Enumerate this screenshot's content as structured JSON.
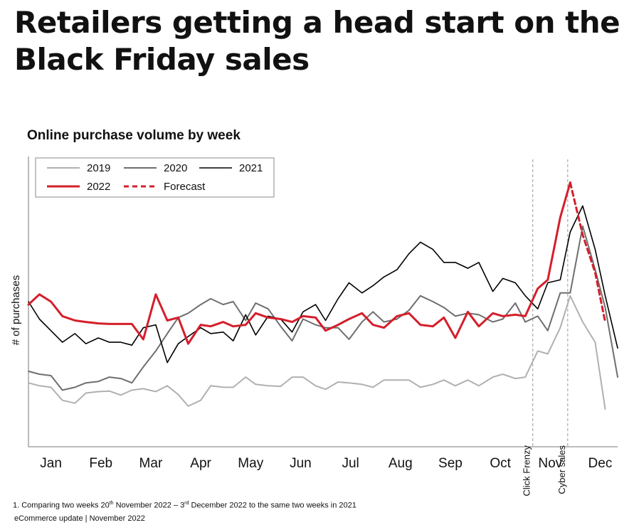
{
  "title_line1": "Retailers getting a head start on the",
  "title_line2": "Black Friday sales",
  "footnote": {
    "prefix": "1. Comparing two weeks 20",
    "sup1": "th",
    "mid": " November 2022 – 3",
    "sup2": "rd",
    "suffix": " December 2022 to the same two weeks in 2021"
  },
  "source": "eCommerce update | November 2022",
  "colors": {
    "2019": "#b0b0b0",
    "2020": "#6e6e6e",
    "2021": "#000000",
    "2022": "#d41f2b",
    "Forecast": "#d41f2b"
  },
  "chart_data": {
    "type": "line",
    "title": "Online purchase volume by week",
    "ylabel": "# of purchases",
    "xlabel": "",
    "y_units": "relative index (no printed y-axis values)",
    "ylim": [
      0,
      100
    ],
    "xlim": [
      0,
      11.8
    ],
    "x_ticks": [
      {
        "label": "Jan",
        "x": 0.45
      },
      {
        "label": "Feb",
        "x": 1.45
      },
      {
        "label": "Mar",
        "x": 2.45
      },
      {
        "label": "Apr",
        "x": 3.45
      },
      {
        "label": "May",
        "x": 4.45
      },
      {
        "label": "Jun",
        "x": 5.45
      },
      {
        "label": "Jul",
        "x": 6.45
      },
      {
        "label": "Aug",
        "x": 7.45
      },
      {
        "label": "Sep",
        "x": 8.45
      },
      {
        "label": "Oct",
        "x": 9.45
      },
      {
        "label": "Nov",
        "x": 10.45
      },
      {
        "label": "Dec",
        "x": 11.45
      }
    ],
    "annotations": [
      {
        "label": "Click Frenzy",
        "x": 10.1,
        "style": "dashed-vertical"
      },
      {
        "label": "Cyber sales",
        "x": 10.8,
        "style": "dashed-vertical"
      }
    ],
    "legend": {
      "placement": "top-left",
      "entries": [
        "2019",
        "2020",
        "2021",
        "2022",
        "Forecast"
      ]
    },
    "grid": false,
    "series": [
      {
        "name": "2019",
        "style": "solid",
        "points": [
          [
            0,
            22
          ],
          [
            0.22,
            21
          ],
          [
            0.45,
            20.5
          ],
          [
            0.68,
            16
          ],
          [
            0.93,
            15
          ],
          [
            1.15,
            18.5
          ],
          [
            1.4,
            19
          ],
          [
            1.62,
            19.2
          ],
          [
            1.85,
            17.8
          ],
          [
            2.07,
            19.5
          ],
          [
            2.3,
            20
          ],
          [
            2.55,
            19
          ],
          [
            2.78,
            21
          ],
          [
            3.0,
            18
          ],
          [
            3.2,
            14
          ],
          [
            3.45,
            16
          ],
          [
            3.65,
            21
          ],
          [
            3.9,
            20.5
          ],
          [
            4.1,
            20.5
          ],
          [
            4.35,
            24
          ],
          [
            4.55,
            21.5
          ],
          [
            4.8,
            21
          ],
          [
            5.05,
            20.8
          ],
          [
            5.28,
            24
          ],
          [
            5.5,
            24
          ],
          [
            5.75,
            21
          ],
          [
            5.95,
            19.8
          ],
          [
            6.2,
            22.3
          ],
          [
            6.42,
            22
          ],
          [
            6.68,
            21.5
          ],
          [
            6.9,
            20.5
          ],
          [
            7.12,
            23
          ],
          [
            7.38,
            23
          ],
          [
            7.62,
            23
          ],
          [
            7.85,
            20.5
          ],
          [
            8.1,
            21.5
          ],
          [
            8.32,
            23
          ],
          [
            8.55,
            21
          ],
          [
            8.8,
            23
          ],
          [
            9.02,
            21
          ],
          [
            9.3,
            24
          ],
          [
            9.5,
            25
          ],
          [
            9.75,
            23.5
          ],
          [
            9.95,
            24
          ],
          [
            10.2,
            33
          ],
          [
            10.4,
            32
          ],
          [
            10.65,
            41
          ],
          [
            10.85,
            52
          ],
          [
            11.1,
            43
          ],
          [
            11.35,
            36
          ],
          [
            11.55,
            13
          ]
        ]
      },
      {
        "name": "2020",
        "style": "solid",
        "points": [
          [
            0,
            26
          ],
          [
            0.22,
            25
          ],
          [
            0.45,
            24.5
          ],
          [
            0.68,
            19.5
          ],
          [
            0.93,
            20.5
          ],
          [
            1.15,
            22
          ],
          [
            1.4,
            22.5
          ],
          [
            1.62,
            24
          ],
          [
            1.85,
            23.5
          ],
          [
            2.07,
            22
          ],
          [
            2.3,
            27.5
          ],
          [
            2.55,
            33
          ],
          [
            2.78,
            39
          ],
          [
            3.0,
            44.5
          ],
          [
            3.2,
            46
          ],
          [
            3.45,
            49
          ],
          [
            3.65,
            51
          ],
          [
            3.9,
            49
          ],
          [
            4.1,
            50
          ],
          [
            4.35,
            43.5
          ],
          [
            4.55,
            49.5
          ],
          [
            4.8,
            47.5
          ],
          [
            5.05,
            41.5
          ],
          [
            5.28,
            36.5
          ],
          [
            5.5,
            44
          ],
          [
            5.75,
            42
          ],
          [
            5.95,
            41
          ],
          [
            6.2,
            41
          ],
          [
            6.42,
            37
          ],
          [
            6.68,
            43
          ],
          [
            6.9,
            46.5
          ],
          [
            7.12,
            43
          ],
          [
            7.38,
            44
          ],
          [
            7.62,
            47
          ],
          [
            7.85,
            52
          ],
          [
            8.1,
            50
          ],
          [
            8.32,
            48
          ],
          [
            8.55,
            45
          ],
          [
            8.8,
            46
          ],
          [
            9.02,
            45.5
          ],
          [
            9.3,
            43
          ],
          [
            9.5,
            44
          ],
          [
            9.75,
            49.5
          ],
          [
            9.95,
            43
          ],
          [
            10.2,
            45
          ],
          [
            10.4,
            40
          ],
          [
            10.65,
            53
          ],
          [
            10.85,
            53
          ],
          [
            11.1,
            76
          ],
          [
            11.35,
            61
          ],
          [
            11.55,
            48
          ],
          [
            11.8,
            24
          ]
        ]
      },
      {
        "name": "2021",
        "style": "solid",
        "points": [
          [
            0,
            50
          ],
          [
            0.22,
            44
          ],
          [
            0.45,
            40
          ],
          [
            0.68,
            36
          ],
          [
            0.93,
            39
          ],
          [
            1.15,
            35.5
          ],
          [
            1.4,
            37.5
          ],
          [
            1.62,
            36
          ],
          [
            1.85,
            36
          ],
          [
            2.07,
            35
          ],
          [
            2.3,
            41
          ],
          [
            2.55,
            42
          ],
          [
            2.78,
            29
          ],
          [
            3.0,
            35.5
          ],
          [
            3.2,
            38
          ],
          [
            3.45,
            41
          ],
          [
            3.65,
            39
          ],
          [
            3.9,
            39.5
          ],
          [
            4.1,
            36.5
          ],
          [
            4.35,
            45.5
          ],
          [
            4.55,
            38.5
          ],
          [
            4.8,
            45
          ],
          [
            5.05,
            44
          ],
          [
            5.28,
            39.5
          ],
          [
            5.5,
            46.5
          ],
          [
            5.75,
            49
          ],
          [
            5.95,
            43.5
          ],
          [
            6.2,
            51
          ],
          [
            6.42,
            56.5
          ],
          [
            6.68,
            53
          ],
          [
            6.9,
            55.5
          ],
          [
            7.12,
            58.5
          ],
          [
            7.38,
            61
          ],
          [
            7.62,
            66.5
          ],
          [
            7.85,
            70.5
          ],
          [
            8.1,
            68
          ],
          [
            8.32,
            63.5
          ],
          [
            8.55,
            63.5
          ],
          [
            8.8,
            61.5
          ],
          [
            9.02,
            63.5
          ],
          [
            9.3,
            53.5
          ],
          [
            9.5,
            58
          ],
          [
            9.75,
            56.5
          ],
          [
            9.95,
            52
          ],
          [
            10.2,
            47.5
          ],
          [
            10.4,
            56.5
          ],
          [
            10.65,
            57.5
          ],
          [
            10.85,
            74
          ],
          [
            11.1,
            83
          ],
          [
            11.35,
            68
          ],
          [
            11.55,
            52
          ],
          [
            11.8,
            34
          ]
        ]
      },
      {
        "name": "2022",
        "style": "solid",
        "points": [
          [
            0,
            49
          ],
          [
            0.22,
            52.5
          ],
          [
            0.45,
            50
          ],
          [
            0.68,
            45
          ],
          [
            0.93,
            43.5
          ],
          [
            1.15,
            43
          ],
          [
            1.4,
            42.5
          ],
          [
            1.62,
            42.3
          ],
          [
            1.85,
            42.3
          ],
          [
            2.07,
            42.3
          ],
          [
            2.3,
            37
          ],
          [
            2.55,
            52.5
          ],
          [
            2.78,
            43.5
          ],
          [
            3.0,
            44.5
          ],
          [
            3.2,
            35.5
          ],
          [
            3.45,
            42
          ],
          [
            3.65,
            41.5
          ],
          [
            3.9,
            43
          ],
          [
            4.1,
            41.5
          ],
          [
            4.35,
            42
          ],
          [
            4.55,
            46
          ],
          [
            4.8,
            44.5
          ],
          [
            5.05,
            44
          ],
          [
            5.28,
            43
          ],
          [
            5.5,
            45
          ],
          [
            5.75,
            44.5
          ],
          [
            5.95,
            40
          ],
          [
            6.2,
            42
          ],
          [
            6.42,
            44
          ],
          [
            6.68,
            46
          ],
          [
            6.9,
            42
          ],
          [
            7.12,
            41
          ],
          [
            7.38,
            45
          ],
          [
            7.62,
            46
          ],
          [
            7.85,
            42
          ],
          [
            8.1,
            41.5
          ],
          [
            8.32,
            44.5
          ],
          [
            8.55,
            37.5
          ],
          [
            8.8,
            46.5
          ],
          [
            9.02,
            41.5
          ],
          [
            9.3,
            46
          ],
          [
            9.5,
            45
          ],
          [
            9.75,
            45.5
          ],
          [
            9.95,
            45
          ],
          [
            10.2,
            54.5
          ],
          [
            10.4,
            57.5
          ],
          [
            10.65,
            79
          ],
          [
            10.85,
            91
          ]
        ]
      },
      {
        "name": "Forecast",
        "style": "dashed",
        "points": [
          [
            10.85,
            91
          ],
          [
            11.1,
            73
          ],
          [
            11.35,
            60
          ],
          [
            11.55,
            43
          ]
        ]
      }
    ]
  }
}
